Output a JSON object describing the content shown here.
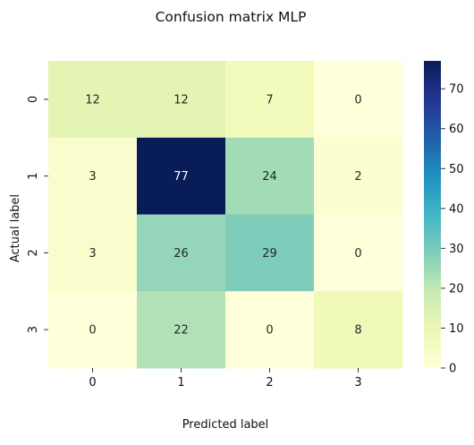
{
  "chart_data": {
    "type": "heatmap",
    "title": "Confusion matrix MLP",
    "xlabel": "Predicted label",
    "ylabel": "Actual label",
    "x_categories": [
      "0",
      "1",
      "2",
      "3"
    ],
    "y_categories": [
      "0",
      "1",
      "2",
      "3"
    ],
    "values": [
      [
        12,
        12,
        7,
        0
      ],
      [
        3,
        77,
        24,
        2
      ],
      [
        3,
        26,
        29,
        0
      ],
      [
        0,
        22,
        0,
        8
      ]
    ],
    "colormap": "YlGnBu",
    "colorbar": {
      "range": [
        0,
        77
      ],
      "ticks": [
        "0",
        "10",
        "20",
        "30",
        "40",
        "50",
        "60",
        "70"
      ]
    }
  }
}
